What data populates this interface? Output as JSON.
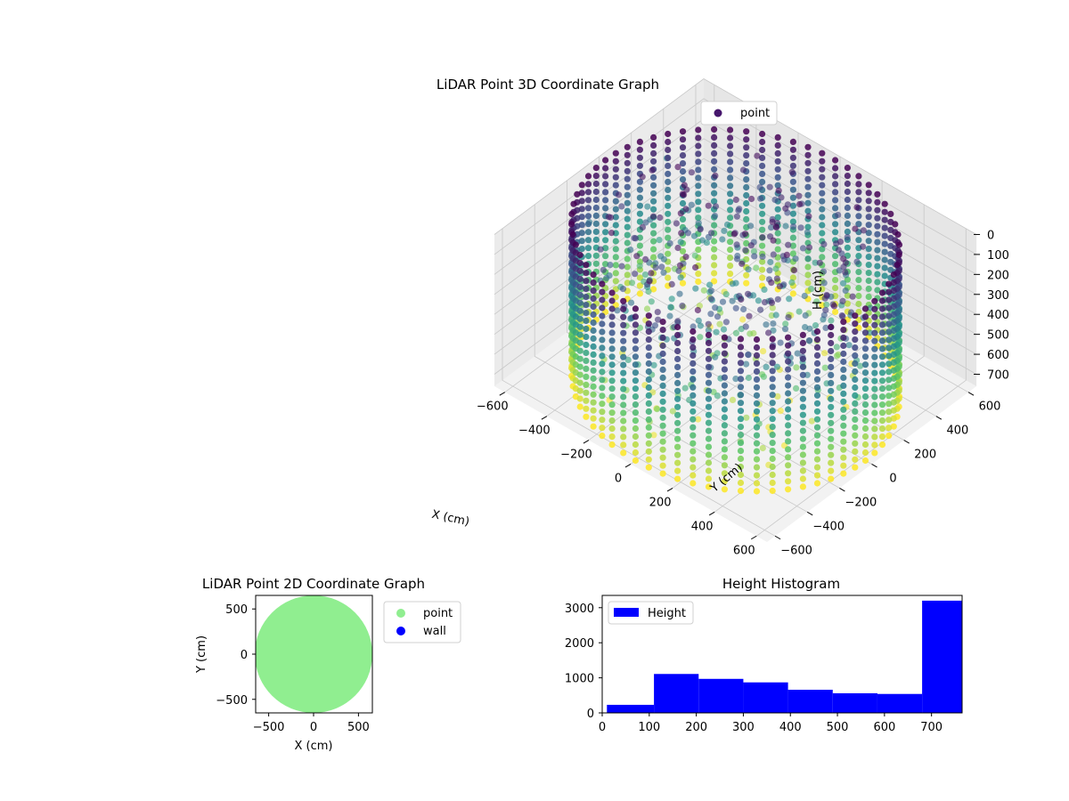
{
  "chart_data": [
    {
      "type": "scatter",
      "title": "LiDAR Point 3D Coordinate Graph",
      "xlabel": "X (cm)",
      "ylabel": "Y (cm)",
      "zlabel": "H (cm)",
      "xlim": [
        -650,
        650
      ],
      "ylim": [
        -650,
        650
      ],
      "zlim": [
        760,
        0
      ],
      "z_inverted": true,
      "x_ticks": [
        "−600",
        "−400",
        "−200",
        "0",
        "200",
        "400",
        "600"
      ],
      "y_ticks": [
        "−600",
        "−400",
        "−200",
        "0",
        "200",
        "400",
        "600"
      ],
      "z_ticks": [
        "0",
        "100",
        "200",
        "300",
        "400",
        "500",
        "600",
        "700"
      ],
      "colormap": "viridis",
      "grid": true,
      "legend": [
        {
          "label": "point",
          "color": "#46166c"
        }
      ],
      "legend_position": "upper-right",
      "description_values": {
        "wall_radius_cm": 620,
        "wall_height_range_cm": [
          0,
          760
        ],
        "wall_columns": 64
      }
    },
    {
      "type": "scatter",
      "title": "LiDAR Point 2D Coordinate Graph",
      "xlabel": "X (cm)",
      "ylabel": "Y (cm)",
      "xlim": [
        -650,
        650
      ],
      "ylim": [
        -650,
        650
      ],
      "x_ticks": [
        "−500",
        "0",
        "500"
      ],
      "y_ticks": [
        "−500",
        "0",
        "500"
      ],
      "series": [
        {
          "name": "point",
          "color": "#90ee90",
          "shape": "filled disc",
          "radius_cm": 620
        },
        {
          "name": "wall",
          "color": "#0000ff",
          "points": []
        }
      ],
      "legend_position": "outside-right"
    },
    {
      "type": "bar",
      "title": "Height Histogram",
      "xlim": [
        0,
        765
      ],
      "ylim": [
        0,
        3350
      ],
      "x_ticks": [
        "0",
        "100",
        "200",
        "300",
        "400",
        "500",
        "600",
        "700"
      ],
      "y_ticks": [
        "0",
        "1000",
        "2000",
        "3000"
      ],
      "bins": [
        {
          "from": 10,
          "to": 110,
          "count": 230
        },
        {
          "from": 110,
          "to": 205,
          "count": 1110
        },
        {
          "from": 205,
          "to": 300,
          "count": 970
        },
        {
          "from": 300,
          "to": 395,
          "count": 870
        },
        {
          "from": 395,
          "to": 490,
          "count": 660
        },
        {
          "from": 490,
          "to": 585,
          "count": 560
        },
        {
          "from": 585,
          "to": 680,
          "count": 540
        },
        {
          "from": 680,
          "to": 765,
          "count": 3200
        }
      ],
      "series": [
        {
          "name": "Height",
          "color": "#0000ff"
        }
      ],
      "legend_position": "upper-left"
    }
  ]
}
